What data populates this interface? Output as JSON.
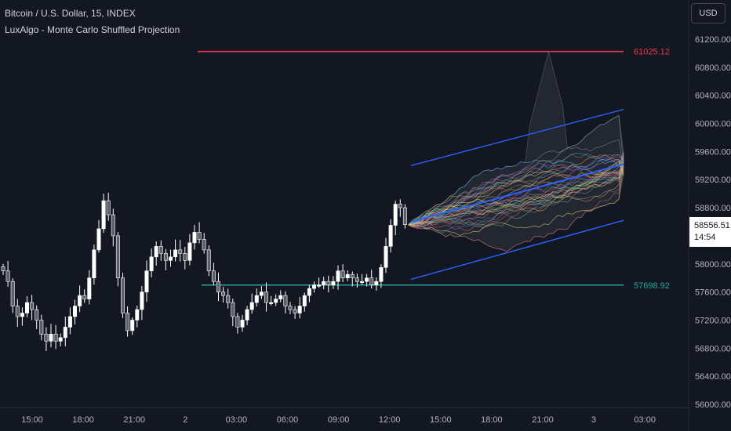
{
  "header": {
    "symbol_title": "Bitcoin / U.S. Dollar, 15, INDEX",
    "indicator_name": "LuxAlgo - Monte Carlo Shuffled Projection"
  },
  "toolbar": {
    "currency_label": "USD"
  },
  "last_price": {
    "value": "58556.51",
    "countdown": "14:54"
  },
  "colors": {
    "background": "#131722",
    "candle": "#ffffff",
    "resistance": "#f23645",
    "support": "#26a69a",
    "channel": "#2962ff",
    "cone_fill": "#434651"
  },
  "chart_data": {
    "type": "candlestick",
    "title": "Bitcoin / U.S. Dollar, 15, INDEX",
    "ylim": [
      56000,
      61600
    ],
    "y_ticks": [
      "61200.00",
      "60800.00",
      "60400.00",
      "60000.00",
      "59600.00",
      "59200.00",
      "58800.00",
      "58000.00",
      "57600.00",
      "57200.00",
      "56800.00",
      "56400.00",
      "56000.00"
    ],
    "x_ticks": [
      "15:00",
      "18:00",
      "21:00",
      "2",
      "03:00",
      "06:00",
      "09:00",
      "12:00",
      "15:00",
      "18:00",
      "21:00",
      "3",
      "03:00"
    ],
    "grid": false,
    "levels": [
      {
        "name": "resistance",
        "value": 61025.12,
        "label": "61025.12"
      },
      {
        "name": "support",
        "value": 57698.92,
        "label": "57698.92"
      }
    ],
    "closes": [
      57900,
      57750,
      57400,
      57250,
      57300,
      57450,
      57350,
      57200,
      57000,
      56900,
      57000,
      56900,
      56950,
      57100,
      57250,
      57400,
      57550,
      57500,
      57800,
      58200,
      58500,
      58900,
      58700,
      58400,
      57800,
      57300,
      57050,
      57200,
      57350,
      57600,
      57900,
      58100,
      58250,
      58150,
      58050,
      58100,
      58200,
      58150,
      58050,
      58300,
      58450,
      58350,
      58200,
      57900,
      57750,
      57600,
      57550,
      57450,
      57250,
      57100,
      57200,
      57350,
      57450,
      57550,
      57600,
      57450,
      57450,
      57500,
      57550,
      57400,
      57350,
      57300,
      57400,
      57550,
      57650,
      57700,
      57700,
      57750,
      57700,
      57750,
      57900,
      57800,
      57850,
      57800,
      57750,
      57750,
      57800,
      57700,
      57750,
      57950,
      58250,
      58550,
      58850,
      58800,
      58560
    ],
    "projection": {
      "start_value": 58556.51,
      "end_mean": 59420,
      "end_high": 59600,
      "end_low": 59250,
      "peak_value": 61025.12,
      "channel_upper": [
        59400,
        60200
      ],
      "channel_mid": [
        58600,
        59420
      ],
      "channel_lower": [
        57780,
        58620
      ]
    }
  }
}
